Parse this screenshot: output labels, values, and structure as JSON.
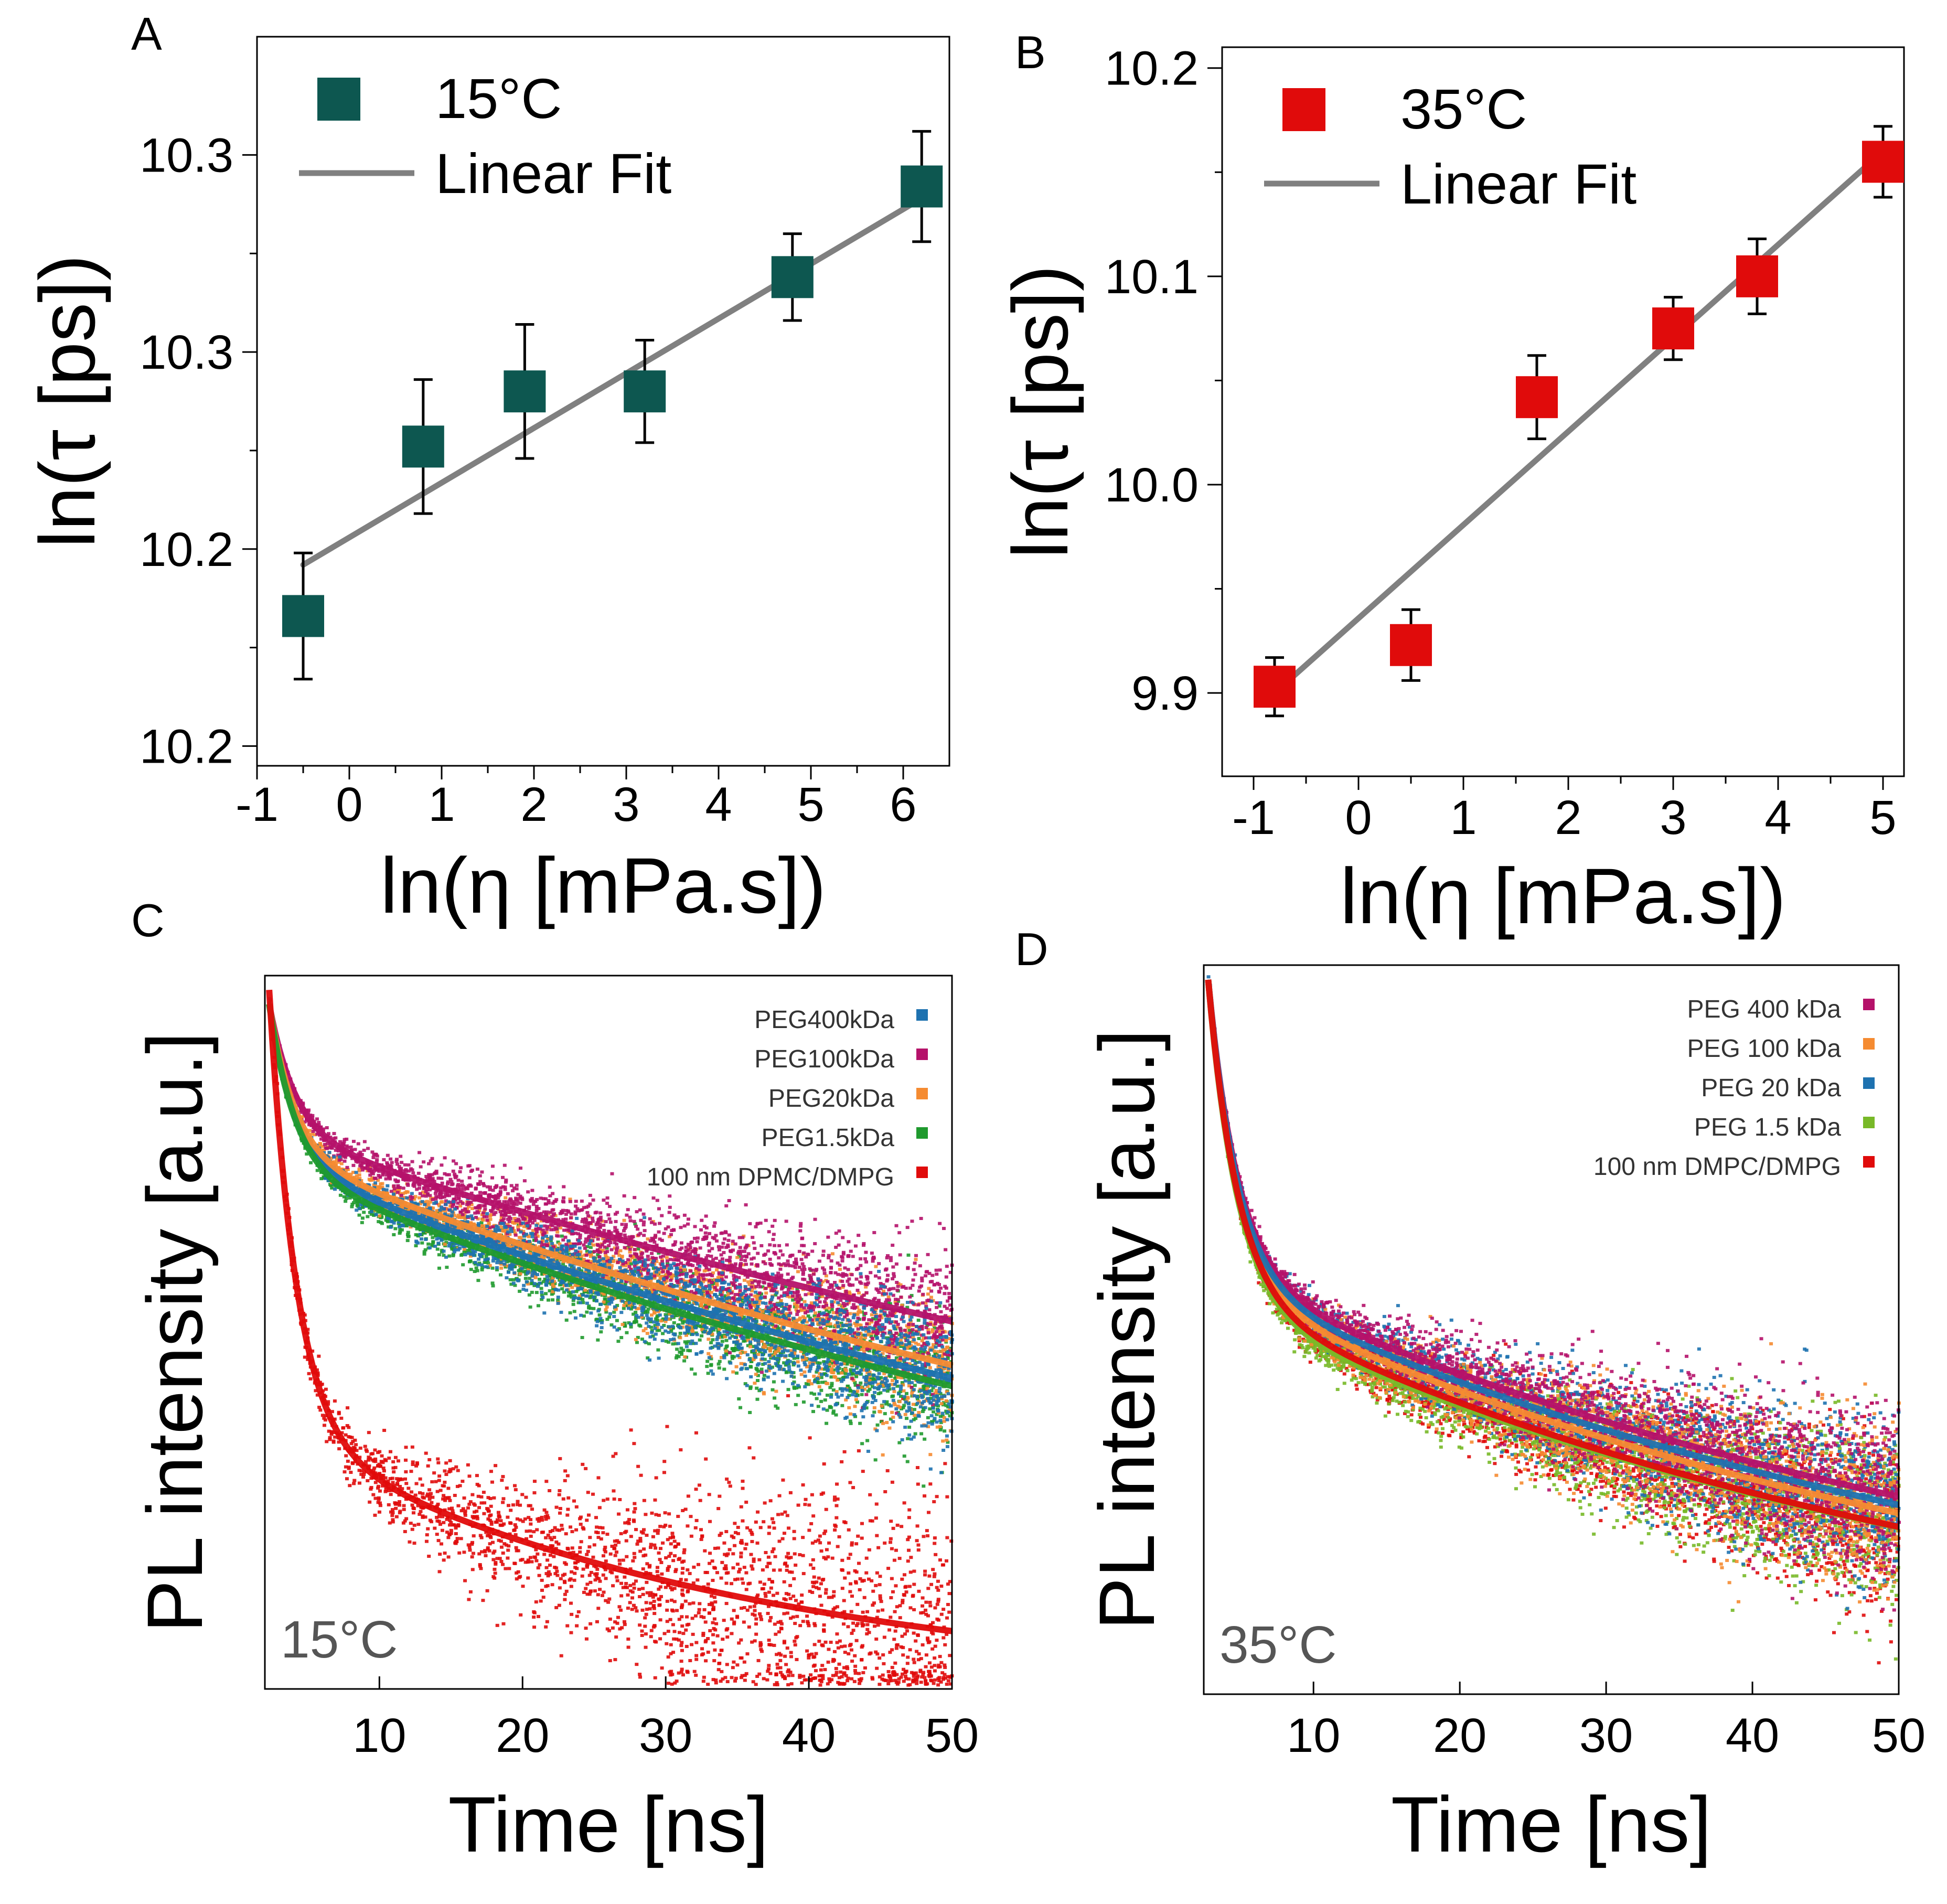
{
  "colors": {
    "teal": "#0d5750",
    "red": "#e00b0b",
    "fit": "#808080",
    "axis": "#000000",
    "crimson": "#b5126a",
    "orange": "#f58b31",
    "blue": "#1e72b0",
    "green": "#1f9a2e",
    "lime": "#78b928"
  },
  "chart_data": [
    {
      "panel": "A",
      "type": "scatter",
      "xlabel": "ln(η [mPa.s])",
      "ylabel": "ln(τ [ps])",
      "xlim": [
        -1,
        6.5
      ],
      "ylim": [
        10.15,
        10.335
      ],
      "xticks": [
        "-1",
        "0",
        "1",
        "2",
        "3",
        "4",
        "5",
        "6"
      ],
      "xtick_values": [
        -1,
        0,
        1,
        2,
        3,
        4,
        5,
        6
      ],
      "yticks": [
        "10.2",
        "10.2",
        "10.3",
        "10.3"
      ],
      "ytick_values": [
        10.155,
        10.205,
        10.255,
        10.305
      ],
      "legend": {
        "series_label": "15°C",
        "fit_label": "Linear Fit",
        "position": "top-left"
      },
      "series": [
        {
          "name": "15°C",
          "color": "#0d5750",
          "x": [
            -0.5,
            0.8,
            1.9,
            3.2,
            4.8,
            6.2
          ],
          "y": [
            10.188,
            10.231,
            10.245,
            10.245,
            10.274,
            10.297
          ],
          "err": [
            0.016,
            0.017,
            0.017,
            0.013,
            0.011,
            0.014
          ]
        }
      ],
      "fit": {
        "x": [
          -0.5,
          6.2
        ],
        "y": [
          10.201,
          10.294
        ]
      },
      "grid": false
    },
    {
      "panel": "B",
      "type": "scatter",
      "xlabel": "ln(η [mPa.s])",
      "ylabel": "ln(τ [ps])",
      "xlim": [
        -1.3,
        5.2
      ],
      "ylim": [
        9.86,
        10.21
      ],
      "xticks": [
        "-1",
        "0",
        "1",
        "2",
        "3",
        "4",
        "5"
      ],
      "xtick_values": [
        -1,
        0,
        1,
        2,
        3,
        4,
        5
      ],
      "yticks": [
        "9.9",
        "10.0",
        "10.1",
        "10.2"
      ],
      "ytick_values": [
        9.9,
        10.0,
        10.1,
        10.2
      ],
      "legend": {
        "series_label": "35°C",
        "fit_label": "Linear Fit",
        "position": "top-left"
      },
      "series": [
        {
          "name": "35°C",
          "color": "#e00b0b",
          "x": [
            -0.8,
            0.5,
            1.7,
            3.0,
            3.8,
            5.0
          ],
          "y": [
            9.903,
            9.923,
            10.042,
            10.075,
            10.1,
            10.155
          ],
          "err": [
            0.014,
            0.017,
            0.02,
            0.015,
            0.018,
            0.017
          ]
        }
      ],
      "fit": {
        "x": [
          -0.8,
          5.0
        ],
        "y": [
          9.9,
          10.16
        ]
      },
      "grid": false
    },
    {
      "panel": "C",
      "type": "scatter",
      "xlabel": "Time [ns]",
      "ylabel": "PL intensity [a.u.]",
      "xlim": [
        2,
        50
      ],
      "ylim": [
        0,
        1
      ],
      "xticks": [
        "10",
        "20",
        "30",
        "40",
        "50"
      ],
      "xtick_values": [
        10,
        20,
        30,
        40,
        50
      ],
      "annotation": "15°C",
      "legend_position": "top-right",
      "series": [
        {
          "name": "PEG400kDa",
          "color": "#1e72b0",
          "a1": 0.22,
          "t1": 1.8,
          "a2": 0.74,
          "t2": 90
        },
        {
          "name": "PEG100kDa",
          "color": "#b5126a",
          "a1": 0.18,
          "t1": 1.8,
          "a2": 0.78,
          "t2": 115
        },
        {
          "name": "PEG20kDa",
          "color": "#f58b31",
          "a1": 0.21,
          "t1": 1.8,
          "a2": 0.75,
          "t2": 95
        },
        {
          "name": "PEG1.5kDa",
          "color": "#1f9a2e",
          "a1": 0.23,
          "t1": 1.8,
          "a2": 0.73,
          "t2": 88
        },
        {
          "name": "100 nm DPMC/DMPG",
          "color": "#e00b0b",
          "a1": 0.62,
          "t1": 1.9,
          "a2": 0.36,
          "t2": 32
        }
      ]
    },
    {
      "panel": "D",
      "type": "scatter",
      "xlabel": "Time [ns]",
      "ylabel": "PL intensity [a.u.]",
      "xlim": [
        2.5,
        50
      ],
      "ylim": [
        0,
        1
      ],
      "xticks": [
        "10",
        "20",
        "30",
        "40",
        "50"
      ],
      "xtick_values": [
        10,
        20,
        30,
        40,
        50
      ],
      "annotation": "35°C",
      "legend_position": "top-right",
      "series": [
        {
          "name": "PEG 400 kDa",
          "color": "#b5126a",
          "a1": 0.4,
          "t1": 2.0,
          "a2": 0.58,
          "t2": 62
        },
        {
          "name": "PEG 100 kDa",
          "color": "#f58b31",
          "a1": 0.42,
          "t1": 2.0,
          "a2": 0.56,
          "t2": 58
        },
        {
          "name": "PEG 20 kDa",
          "color": "#1e72b0",
          "a1": 0.41,
          "t1": 2.0,
          "a2": 0.57,
          "t2": 60
        },
        {
          "name": "PEG 1.5 kDa",
          "color": "#78b928",
          "a1": 0.44,
          "t1": 2.0,
          "a2": 0.54,
          "t2": 55
        },
        {
          "name": "100 nm DMPC/DMPG",
          "color": "#e00b0b",
          "a1": 0.43,
          "t1": 2.0,
          "a2": 0.55,
          "t2": 54
        }
      ]
    }
  ]
}
